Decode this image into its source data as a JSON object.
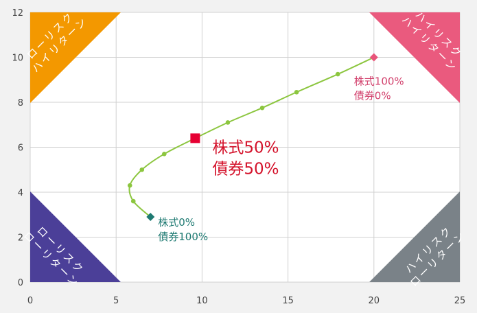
{
  "chart_data": {
    "type": "line",
    "xlim": [
      0,
      25
    ],
    "ylim": [
      0,
      12
    ],
    "x_ticks": [
      "0",
      "5",
      "10",
      "15",
      "20",
      "25"
    ],
    "y_ticks": [
      "0",
      "2",
      "4",
      "6",
      "8",
      "10",
      "12"
    ],
    "grid": true,
    "series": [
      {
        "points": [
          {
            "x": 7.0,
            "y": 2.9
          },
          {
            "x": 6.0,
            "y": 3.6
          },
          {
            "x": 5.8,
            "y": 4.3
          },
          {
            "x": 6.5,
            "y": 5.0
          },
          {
            "x": 7.8,
            "y": 5.7
          },
          {
            "x": 9.6,
            "y": 6.4
          },
          {
            "x": 11.5,
            "y": 7.1
          },
          {
            "x": 13.5,
            "y": 7.75
          },
          {
            "x": 15.5,
            "y": 8.45
          },
          {
            "x": 17.9,
            "y": 9.25
          },
          {
            "x": 20.0,
            "y": 10.0
          }
        ],
        "color": "#8cc63f"
      }
    ],
    "highlights": [
      {
        "x": 7.0,
        "y": 2.9,
        "marker": "diamond",
        "color": "#1e7a72",
        "label": [
          "株式0%",
          "債券100%"
        ]
      },
      {
        "x": 9.6,
        "y": 6.4,
        "marker": "square",
        "color": "#e60033",
        "label": [
          "株式50%",
          "債券50%"
        ]
      },
      {
        "x": 20.0,
        "y": 10.0,
        "marker": "diamond",
        "color": "#e8557a",
        "label": [
          "株式100%",
          "債券0%"
        ]
      }
    ],
    "corners": [
      {
        "position": "top-left",
        "color": "#f39800",
        "text": [
          "ローリスク",
          "ハイリターン"
        ]
      },
      {
        "position": "top-right",
        "color": "#ea5a7e",
        "text": [
          "ハイリスク",
          "ハイリターン"
        ]
      },
      {
        "position": "bottom-left",
        "color": "#4b3f98",
        "text": [
          "ローリスク",
          "ローリターン"
        ]
      },
      {
        "position": "bottom-right",
        "color": "#7a8288",
        "text": [
          "ハイリスク",
          "ローリターン"
        ]
      }
    ]
  }
}
